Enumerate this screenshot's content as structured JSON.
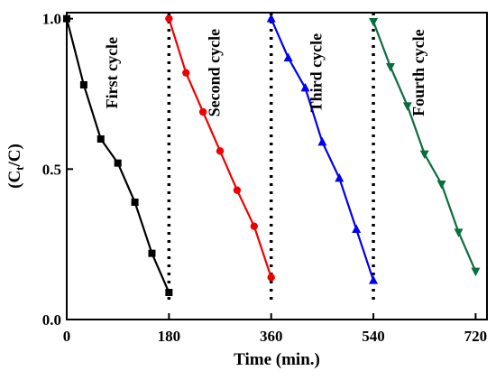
{
  "chart_data": {
    "type": "line",
    "xlabel": "Time (min.)",
    "ylabel": "(C",
    "ylabel_sub": "t",
    "ylabel_tail": "/C)",
    "xlim": [
      0,
      740
    ],
    "ylim": [
      0,
      1.02
    ],
    "x_ticks": [
      {
        "value": 0,
        "label": "0"
      },
      {
        "value": 180,
        "label": "180"
      },
      {
        "value": 360,
        "label": "360"
      },
      {
        "value": 540,
        "label": "540"
      },
      {
        "value": 720,
        "label": "720"
      }
    ],
    "y_ticks": [
      {
        "value": 0,
        "label": "0.0"
      },
      {
        "value": 0.5,
        "label": "0.5"
      },
      {
        "value": 1.0,
        "label": "1.0"
      }
    ],
    "dividers": [
      180,
      360,
      540
    ],
    "series": [
      {
        "label": "First cycle",
        "color": "#000000",
        "marker": "square",
        "x": [
          0,
          30,
          60,
          90,
          120,
          150,
          180
        ],
        "y": [
          1.0,
          0.78,
          0.6,
          0.52,
          0.39,
          0.22,
          0.09
        ]
      },
      {
        "label": "Second cycle",
        "color": "#ee0000",
        "marker": "circle",
        "x": [
          180,
          210,
          240,
          270,
          300,
          330,
          360
        ],
        "y": [
          1.0,
          0.82,
          0.69,
          0.56,
          0.43,
          0.31,
          0.14
        ]
      },
      {
        "label": "Third cycle",
        "color": "#0000ee",
        "marker": "triangle-up",
        "x": [
          360,
          390,
          420,
          450,
          480,
          510,
          540
        ],
        "y": [
          1.0,
          0.87,
          0.77,
          0.59,
          0.47,
          0.3,
          0.13
        ]
      },
      {
        "label": "Fourth cycle",
        "color": "#0a6e3c",
        "marker": "triangle-down",
        "x": [
          540,
          570,
          600,
          630,
          660,
          690,
          720
        ],
        "y": [
          0.99,
          0.84,
          0.71,
          0.55,
          0.45,
          0.29,
          0.16
        ]
      }
    ]
  }
}
